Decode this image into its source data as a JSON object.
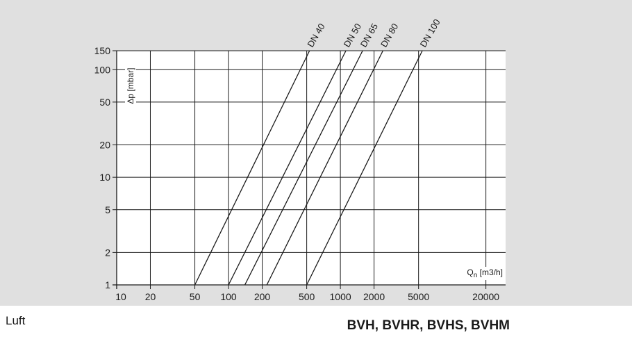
{
  "colors": {
    "panel_background": "#e0e0e0",
    "plot_background": "#ffffff",
    "lines": "#1a1a1a"
  },
  "footer": {
    "medium": "Luft",
    "products": "BVH, BVHR, BVHS, BVHM"
  },
  "chart_data": {
    "type": "line",
    "title": "",
    "xlabel": "Qn [m3/h]",
    "xlabel_main": "Q",
    "xlabel_sub": "n",
    "xlabel_rest": " [m3/h]",
    "ylabel": "Δp [mbar]",
    "xscale": "log",
    "yscale": "log",
    "xlim": [
      10,
      30000
    ],
    "ylim": [
      1,
      150
    ],
    "grid": true,
    "x_ticks": [
      10,
      20,
      50,
      100,
      200,
      500,
      1000,
      2000,
      5000,
      20000
    ],
    "x_tick_labels": [
      "10",
      "20",
      "50",
      "100",
      "200",
      "500",
      "1000",
      "2000",
      "5000",
      "20000"
    ],
    "y_ticks": [
      1,
      2,
      5,
      10,
      20,
      50,
      100,
      150
    ],
    "y_tick_labels": [
      "1",
      "2",
      "5",
      "10",
      "20",
      "50",
      "100",
      "150"
    ],
    "series": [
      {
        "name": "DN 40",
        "points": [
          [
            50,
            1
          ],
          [
            530,
            150
          ]
        ]
      },
      {
        "name": "DN 50",
        "points": [
          [
            100,
            1
          ],
          [
            1120,
            150
          ]
        ]
      },
      {
        "name": "DN 65",
        "points": [
          [
            140,
            1
          ],
          [
            1580,
            150
          ]
        ]
      },
      {
        "name": "DN 80",
        "points": [
          [
            220,
            1
          ],
          [
            2400,
            150
          ]
        ]
      },
      {
        "name": "DN 100",
        "points": [
          [
            500,
            1
          ],
          [
            5400,
            150
          ]
        ]
      }
    ]
  }
}
